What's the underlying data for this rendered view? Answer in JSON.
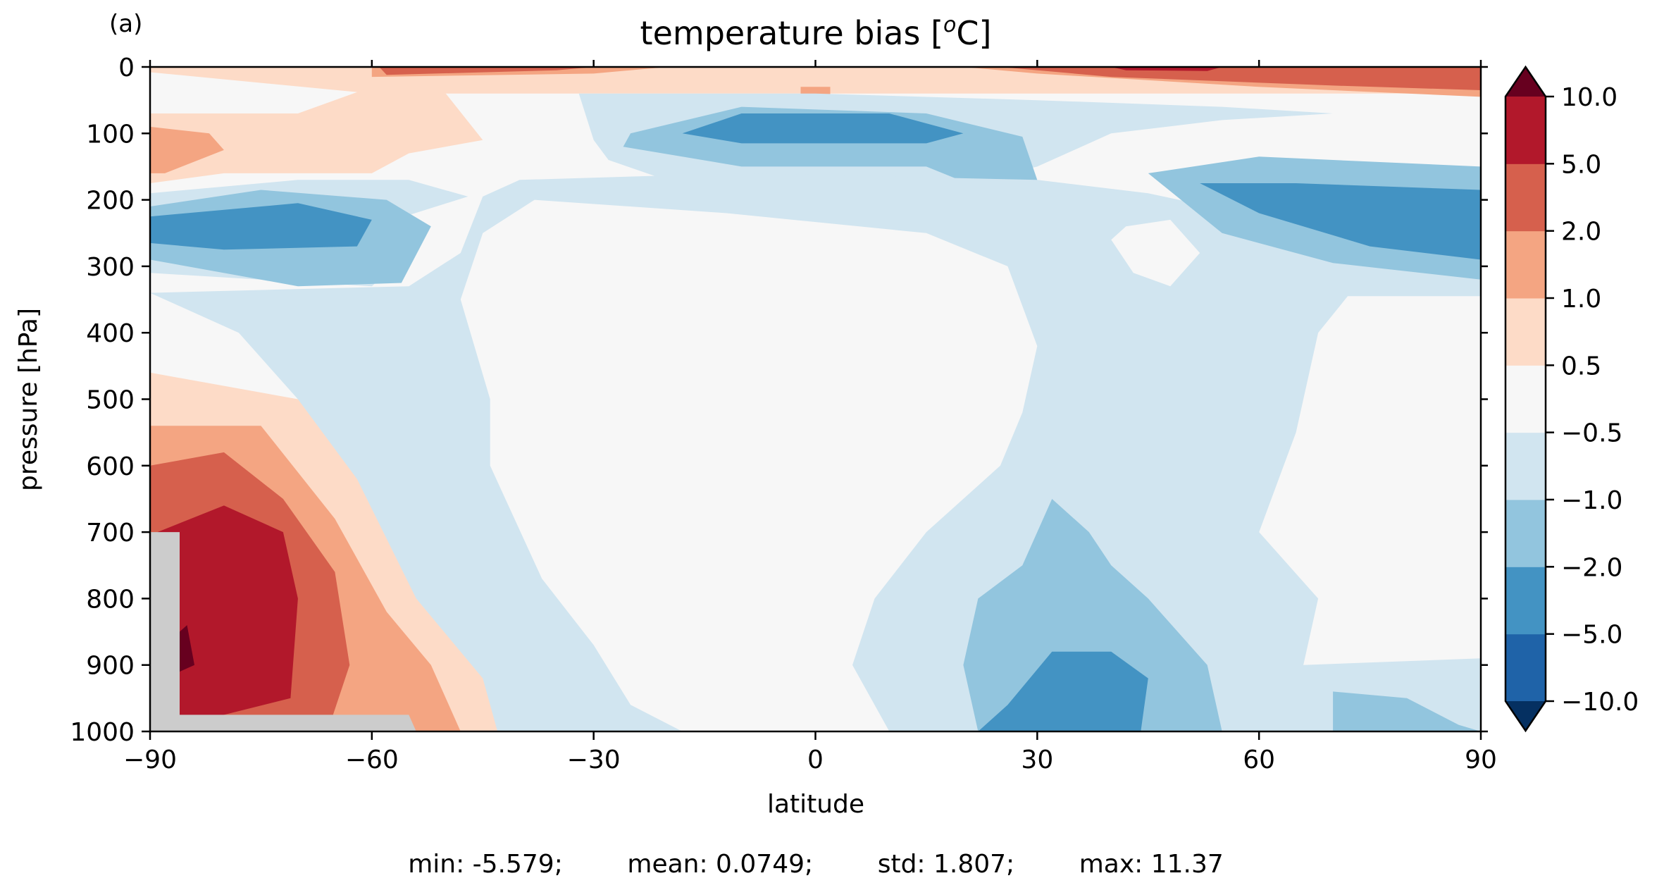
{
  "panel_label": "(a)",
  "stats_line": "min: -5.579;        mean: 0.0749;        std: 1.807;        max: 11.37",
  "chart_data": {
    "type": "heatmap",
    "title": "temperature bias [°C]",
    "title_parts": {
      "base": "temperature bias [",
      "sup": "o",
      "rest": "C]"
    },
    "xlabel": "latitude",
    "ylabel": "pressure [hPa]",
    "xlim": [
      -90,
      90
    ],
    "ylim": [
      1000,
      0
    ],
    "xticks": [
      -90,
      -60,
      -30,
      0,
      30,
      60,
      90
    ],
    "xtick_labels": [
      "−90",
      "−60",
      "−30",
      "0",
      "30",
      "60",
      "90"
    ],
    "yticks": [
      0,
      100,
      200,
      300,
      400,
      500,
      600,
      700,
      800,
      900,
      1000
    ],
    "ytick_labels": [
      "0",
      "100",
      "200",
      "300",
      "400",
      "500",
      "600",
      "700",
      "800",
      "900",
      "1000"
    ],
    "colorbar": {
      "extend": "both",
      "levels": [
        -10.0,
        -5.0,
        -2.0,
        -1.0,
        -0.5,
        0.5,
        1.0,
        2.0,
        5.0,
        10.0
      ],
      "labels": [
        "−10.0",
        "−5.0",
        "−2.0",
        "−1.0",
        "−0.5",
        "0.5",
        "1.0",
        "2.0",
        "5.0",
        "10.0"
      ],
      "colors": [
        "#1f63a8",
        "#4393c3",
        "#92c5de",
        "#d1e5f0",
        "#f7f7f7",
        "#fddbc7",
        "#f4a582",
        "#d6604d",
        "#b2182b"
      ],
      "under_color": "#053061",
      "over_color": "#67001f"
    },
    "missing_color": "#cccccc",
    "regions": [
      {
        "name": "top-warm-band",
        "color": "#fddbc7",
        "points": [
          [
            -90,
            0
          ],
          [
            90,
            0
          ],
          [
            90,
            40
          ],
          [
            -60,
            40
          ],
          [
            -90,
            8
          ]
        ]
      },
      {
        "name": "sh-lower-strat-warm",
        "color": "#fddbc7",
        "points": [
          [
            -90,
            70
          ],
          [
            -70,
            70
          ],
          [
            -60,
            30
          ],
          [
            -50,
            40
          ],
          [
            -45,
            110
          ],
          [
            -55,
            130
          ],
          [
            -60,
            160
          ],
          [
            -80,
            160
          ],
          [
            -90,
            175
          ]
        ]
      },
      {
        "name": "sh-lower-strat-1",
        "color": "#f4a582",
        "points": [
          [
            -90,
            90
          ],
          [
            -82,
            100
          ],
          [
            -80,
            125
          ],
          [
            -88,
            160
          ],
          [
            -90,
            160
          ]
        ]
      },
      {
        "name": "top-warm-1-left",
        "color": "#f4a582",
        "points": [
          [
            -60,
            0
          ],
          [
            -20,
            0
          ],
          [
            -30,
            10
          ],
          [
            -60,
            15
          ]
        ]
      },
      {
        "name": "top-warm-2-left",
        "color": "#d6604d",
        "points": [
          [
            -59,
            0
          ],
          [
            -30,
            0
          ],
          [
            -35,
            5
          ],
          [
            -58,
            12
          ]
        ]
      },
      {
        "name": "top-warm-1-center",
        "color": "#f4a582",
        "points": [
          [
            -2,
            30
          ],
          [
            2,
            30
          ],
          [
            2,
            50
          ],
          [
            -2,
            50
          ]
        ]
      },
      {
        "name": "top-warm-1-right",
        "color": "#f4a582",
        "points": [
          [
            20,
            0
          ],
          [
            90,
            0
          ],
          [
            90,
            45
          ],
          [
            60,
            30
          ],
          [
            30,
            10
          ]
        ]
      },
      {
        "name": "top-warm-2-right",
        "color": "#d6604d",
        "points": [
          [
            25,
            0
          ],
          [
            90,
            0
          ],
          [
            90,
            35
          ],
          [
            70,
            28
          ],
          [
            40,
            15
          ]
        ]
      },
      {
        "name": "top-warm-5-right",
        "color": "#b2182b",
        "points": [
          [
            40,
            0
          ],
          [
            55,
            0
          ],
          [
            53,
            6
          ],
          [
            42,
            5
          ]
        ]
      },
      {
        "name": "strat-cold-band",
        "color": "#d1e5f0",
        "points": [
          [
            -32,
            40
          ],
          [
            0,
            40
          ],
          [
            30,
            50
          ],
          [
            55,
            60
          ],
          [
            70,
            70
          ],
          [
            55,
            80
          ],
          [
            40,
            100
          ],
          [
            30,
            150
          ],
          [
            15,
            190
          ],
          [
            -15,
            190
          ],
          [
            -28,
            140
          ],
          [
            -30,
            110
          ]
        ]
      },
      {
        "name": "strat-cold-2",
        "color": "#92c5de",
        "points": [
          [
            -25,
            100
          ],
          [
            -10,
            60
          ],
          [
            15,
            70
          ],
          [
            28,
            105
          ],
          [
            30,
            170
          ],
          [
            25,
            195
          ],
          [
            15,
            150
          ],
          [
            -10,
            150
          ],
          [
            -26,
            120
          ]
        ]
      },
      {
        "name": "strat-cold-5",
        "color": "#4393c3",
        "points": [
          [
            -18,
            100
          ],
          [
            -10,
            70
          ],
          [
            10,
            70
          ],
          [
            20,
            100
          ],
          [
            15,
            115
          ],
          [
            -10,
            115
          ]
        ]
      },
      {
        "name": "sh-upper-trop-cold",
        "color": "#d1e5f0",
        "points": [
          [
            -90,
            190
          ],
          [
            -70,
            170
          ],
          [
            -55,
            170
          ],
          [
            -47,
            195
          ],
          [
            -57,
            230
          ],
          [
            -55,
            280
          ],
          [
            -60,
            330
          ],
          [
            -90,
            310
          ]
        ]
      },
      {
        "name": "sh-upper-trop-2",
        "color": "#92c5de",
        "points": [
          [
            -90,
            210
          ],
          [
            -75,
            185
          ],
          [
            -58,
            200
          ],
          [
            -52,
            240
          ],
          [
            -56,
            325
          ],
          [
            -70,
            330
          ],
          [
            -90,
            290
          ]
        ]
      },
      {
        "name": "sh-upper-trop-5",
        "color": "#4393c3",
        "points": [
          [
            -90,
            225
          ],
          [
            -70,
            205
          ],
          [
            -60,
            230
          ],
          [
            -62,
            270
          ],
          [
            -80,
            275
          ],
          [
            -90,
            265
          ]
        ]
      },
      {
        "name": "tropical-cold",
        "color": "#d1e5f0",
        "points": [
          [
            -55,
            330
          ],
          [
            -48,
            280
          ],
          [
            -45,
            195
          ],
          [
            -40,
            170
          ],
          [
            -10,
            160
          ],
          [
            30,
            170
          ],
          [
            45,
            190
          ],
          [
            70,
            250
          ],
          [
            90,
            320
          ],
          [
            90,
            345
          ],
          [
            72,
            345
          ],
          [
            68,
            400
          ],
          [
            65,
            550
          ],
          [
            60,
            700
          ],
          [
            68,
            800
          ],
          [
            66,
            900
          ],
          [
            90,
            890
          ],
          [
            90,
            1000
          ],
          [
            -50,
            1000
          ],
          [
            -54,
            900
          ],
          [
            -58,
            800
          ],
          [
            -62,
            700
          ],
          [
            -65,
            600
          ],
          [
            -70,
            500
          ],
          [
            -78,
            400
          ],
          [
            -90,
            340
          ]
        ]
      },
      {
        "name": "tropical-white-core",
        "color": "#f7f7f7",
        "points": [
          [
            -38,
            200
          ],
          [
            -12,
            220
          ],
          [
            15,
            250
          ],
          [
            26,
            300
          ],
          [
            30,
            420
          ],
          [
            28,
            520
          ],
          [
            25,
            600
          ],
          [
            15,
            700
          ],
          [
            8,
            800
          ],
          [
            5,
            900
          ],
          [
            10,
            1000
          ],
          [
            -18,
            1000
          ],
          [
            -25,
            960
          ],
          [
            -30,
            870
          ],
          [
            -37,
            770
          ],
          [
            -44,
            600
          ],
          [
            -44,
            500
          ],
          [
            -48,
            350
          ],
          [
            -45,
            250
          ]
        ]
      },
      {
        "name": "nh-upper-white",
        "color": "#f7f7f7",
        "points": [
          [
            42,
            240
          ],
          [
            48,
            230
          ],
          [
            52,
            280
          ],
          [
            48,
            330
          ],
          [
            43,
            310
          ],
          [
            40,
            260
          ]
        ]
      },
      {
        "name": "nh-upper-trop-2",
        "color": "#92c5de",
        "points": [
          [
            45,
            160
          ],
          [
            60,
            135
          ],
          [
            90,
            150
          ],
          [
            90,
            320
          ],
          [
            70,
            295
          ],
          [
            55,
            250
          ]
        ]
      },
      {
        "name": "nh-upper-trop-5",
        "color": "#4393c3",
        "points": [
          [
            52,
            175
          ],
          [
            65,
            175
          ],
          [
            90,
            185
          ],
          [
            90,
            290
          ],
          [
            75,
            270
          ],
          [
            60,
            220
          ]
        ]
      },
      {
        "name": "nh-surface-cold-2",
        "color": "#92c5de",
        "points": [
          [
            22,
            1000
          ],
          [
            20,
            900
          ],
          [
            22,
            800
          ],
          [
            28,
            750
          ],
          [
            32,
            650
          ],
          [
            37,
            700
          ],
          [
            40,
            750
          ],
          [
            45,
            800
          ],
          [
            53,
            900
          ],
          [
            55,
            1000
          ]
        ]
      },
      {
        "name": "nh-surface-cold-5",
        "color": "#4393c3",
        "points": [
          [
            22,
            1000
          ],
          [
            26,
            960
          ],
          [
            32,
            880
          ],
          [
            40,
            880
          ],
          [
            45,
            920
          ],
          [
            44,
            1000
          ]
        ]
      },
      {
        "name": "nh-surface-cold-arctic",
        "color": "#92c5de",
        "points": [
          [
            70,
            1000
          ],
          [
            70,
            940
          ],
          [
            80,
            950
          ],
          [
            87,
            990
          ],
          [
            90,
            1000
          ]
        ]
      },
      {
        "name": "sh-lower-trop-warm",
        "color": "#fddbc7",
        "points": [
          [
            -90,
            460
          ],
          [
            -70,
            500
          ],
          [
            -62,
            620
          ],
          [
            -54,
            800
          ],
          [
            -45,
            920
          ],
          [
            -43,
            1000
          ],
          [
            -90,
            1000
          ]
        ]
      },
      {
        "name": "sh-lower-trop-1",
        "color": "#f4a582",
        "points": [
          [
            -90,
            540
          ],
          [
            -75,
            540
          ],
          [
            -65,
            680
          ],
          [
            -58,
            820
          ],
          [
            -52,
            900
          ],
          [
            -48,
            1000
          ],
          [
            -90,
            1000
          ]
        ]
      },
      {
        "name": "sh-lower-trop-2",
        "color": "#d6604d",
        "points": [
          [
            -90,
            600
          ],
          [
            -80,
            580
          ],
          [
            -72,
            650
          ],
          [
            -65,
            760
          ],
          [
            -63,
            900
          ],
          [
            -66,
            1000
          ],
          [
            -90,
            1000
          ]
        ]
      },
      {
        "name": "sh-lower-trop-5",
        "color": "#b2182b",
        "points": [
          [
            -89,
            700
          ],
          [
            -80,
            660
          ],
          [
            -72,
            700
          ],
          [
            -70,
            800
          ],
          [
            -71,
            950
          ],
          [
            -80,
            975
          ],
          [
            -88,
            990
          ]
        ]
      },
      {
        "name": "sh-lower-trop-10",
        "color": "#67001f",
        "points": [
          [
            -86,
            850
          ],
          [
            -85,
            840
          ],
          [
            -84,
            900
          ],
          [
            -86,
            910
          ]
        ]
      },
      {
        "name": "antarctic-missing",
        "color": "#cccccc",
        "points": [
          [
            -90,
            700
          ],
          [
            -86,
            700
          ],
          [
            -86,
            975
          ],
          [
            -55,
            975
          ],
          [
            -54,
            1000
          ],
          [
            -90,
            1000
          ]
        ]
      }
    ]
  }
}
